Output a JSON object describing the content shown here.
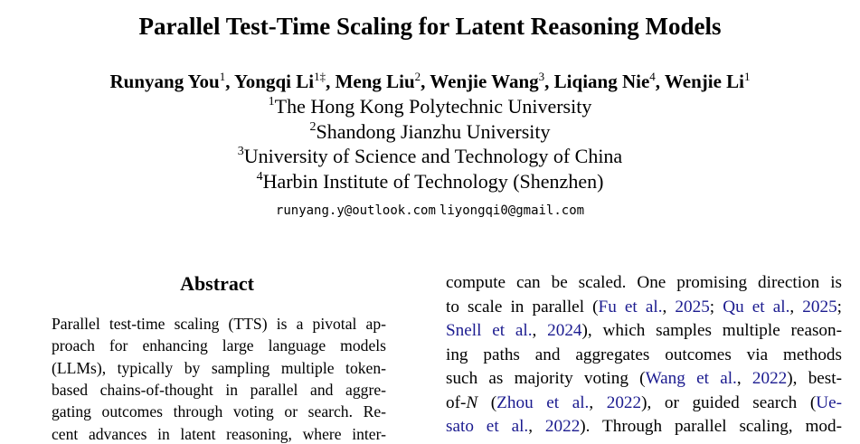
{
  "header": {
    "title": "Parallel Test-Time Scaling for Latent Reasoning Models",
    "authors": {
      "separator": ", ",
      "names": [
        {
          "name": "Runyang You",
          "sup": "1"
        },
        {
          "name": "Yongqi Li",
          "sup": "1‡"
        },
        {
          "name": "Meng Liu",
          "sup": "2"
        },
        {
          "name": "Wenjie Wang",
          "sup": "3"
        },
        {
          "name": "Liqiang Nie",
          "sup": "4"
        },
        {
          "name": "Wenjie Li",
          "sup": "1"
        }
      ]
    },
    "affiliations": [
      {
        "sup": "1",
        "name": "The Hong Kong Polytechnic University"
      },
      {
        "sup": "2",
        "name": "Shandong Jianzhu University"
      },
      {
        "sup": "3",
        "name": "University of Science and Technology of China"
      },
      {
        "sup": "4",
        "name": "Harbin Institute of Technology (Shenzhen)"
      }
    ],
    "emails": [
      "runyang.y@outlook.com",
      "liyongqi0@gmail.com"
    ]
  },
  "abstract": {
    "heading": "Abstract",
    "lines": [
      "Parallel test-time scaling (TTS) is a pivotal ap-",
      "proach for enhancing large language models",
      "(LLMs), typically by sampling multiple token-",
      "based chains-of-thought in parallel and aggre-",
      "gating outcomes through voting or search. Re-",
      "cent advances in latent reasoning, where inter-"
    ]
  },
  "introduction": {
    "lines": [
      [
        "compute can be scaled.  One promising direction is"
      ],
      [
        "to scale in parallel (",
        {
          "cite": "Fu et al."
        },
        ", ",
        {
          "cite": "2025"
        },
        "; ",
        {
          "cite": "Qu et al."
        },
        ", ",
        {
          "cite": "2025"
        },
        ";"
      ],
      [
        {
          "cite": "Snell et al."
        },
        ", ",
        {
          "cite": "2024"
        },
        "), which samples multiple reason-"
      ],
      [
        "ing paths and aggregates outcomes via methods"
      ],
      [
        "such as majority voting (",
        {
          "cite": "Wang et al."
        },
        ", ",
        {
          "cite": "2022"
        },
        "), best-"
      ],
      [
        "of-",
        {
          "math": "N"
        },
        "  (",
        {
          "cite": "Zhou et al."
        },
        ", ",
        {
          "cite": "2022"
        },
        "), or guided search (",
        {
          "cite": "Ue-"
        }
      ],
      [
        {
          "cite": "sato et al."
        },
        ", ",
        {
          "cite": "2022"
        },
        "). Through parallel scaling, mod-"
      ]
    ]
  }
}
